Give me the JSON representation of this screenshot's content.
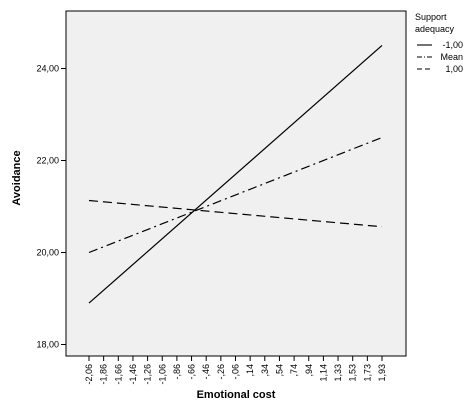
{
  "chart_data": {
    "type": "line",
    "xlabel": "Emotional cost",
    "ylabel": "Avoidance",
    "x_ticks": [
      "-2,06",
      "-1,86",
      "-1,66",
      "-1,46",
      "-1,26",
      "-1,06",
      "-,86",
      "-,66",
      "-,46",
      "-,26",
      "-,06",
      ",14",
      ",34",
      ",54",
      ",74",
      ",94",
      "1,14",
      "1,33",
      "1,53",
      "1,73",
      "1,93"
    ],
    "y_ticks": [
      "18,00",
      "20,00",
      "22,00",
      "24,00"
    ],
    "ylim": [
      17.75,
      25.25
    ],
    "x_numeric_range": [
      -2.06,
      1.93
    ],
    "grid": false,
    "legend": {
      "title": "Support adequacy",
      "position": "right",
      "entries": [
        "-1,00",
        "Mean",
        "1,00"
      ]
    },
    "series": [
      {
        "name": "-1,00",
        "line_style": "solid",
        "x": [
          -2.06,
          1.93
        ],
        "y": [
          18.9,
          24.5
        ]
      },
      {
        "name": "Mean",
        "line_style": "dash-dot",
        "x": [
          -2.06,
          1.93
        ],
        "y": [
          20.0,
          22.5
        ]
      },
      {
        "name": "1,00",
        "line_style": "dashed",
        "x": [
          -2.06,
          1.93
        ],
        "y": [
          21.13,
          20.56
        ]
      }
    ],
    "colors": {
      "plot_background": "#f0f0f0",
      "lines": "#000000"
    }
  }
}
